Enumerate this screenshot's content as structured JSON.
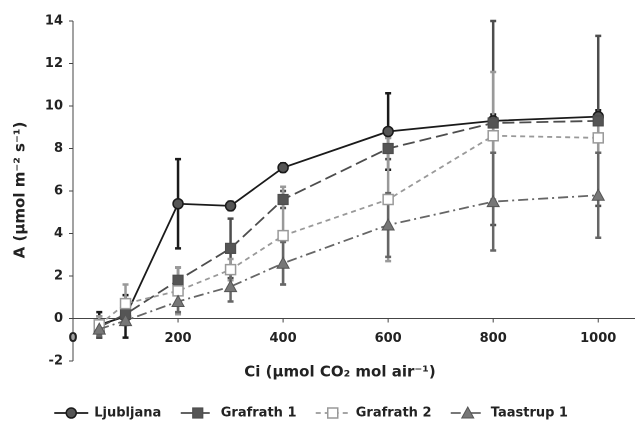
{
  "chart_data": {
    "type": "line",
    "x_label": "Ci (µmol CO₂ mol air⁻¹)",
    "y_label": "A (µmol m⁻² s⁻¹)",
    "x": [
      50,
      100,
      200,
      300,
      400,
      600,
      800,
      1000
    ],
    "xlim": [
      0,
      1070
    ],
    "xticks": [
      0,
      200,
      400,
      600,
      800,
      1000
    ],
    "ylim": [
      -2,
      14
    ],
    "yticks": [
      -2,
      0,
      2,
      4,
      6,
      8,
      10,
      12,
      14
    ],
    "legend": "bottom",
    "series": [
      {
        "name": "Ljubljana",
        "color": "#1a1a1a",
        "marker": "circle",
        "values": [
          -0.3,
          0.1,
          5.4,
          5.3,
          7.1,
          8.8,
          9.3,
          9.5
        ],
        "errors": [
          0.6,
          1.0,
          2.1,
          0.2,
          0.2,
          1.8,
          0.3,
          0.3
        ]
      },
      {
        "name": "Grafrath 1",
        "color": "#4d4d4d",
        "marker": "square",
        "values": [
          -0.4,
          0.2,
          1.8,
          3.3,
          5.6,
          8.0,
          9.2,
          9.3
        ],
        "errors": [
          0.5,
          0.5,
          0.6,
          1.4,
          0.4,
          0.5,
          4.8,
          4.0
        ]
      },
      {
        "name": "Grafrath 2",
        "color": "#999999",
        "marker": "open-square",
        "values": [
          -0.3,
          0.7,
          1.3,
          2.3,
          3.9,
          5.6,
          8.6,
          8.5
        ],
        "errors": [
          0.4,
          0.9,
          1.1,
          0.5,
          2.3,
          2.9,
          3.0,
          0.7
        ]
      },
      {
        "name": "Taastrup 1",
        "color": "#666666",
        "marker": "triangle",
        "values": [
          -0.5,
          -0.1,
          0.8,
          1.5,
          2.6,
          4.4,
          5.5,
          5.8
        ],
        "errors": [
          0.3,
          0.2,
          0.5,
          0.7,
          1.0,
          1.5,
          2.3,
          2.0
        ]
      }
    ]
  }
}
